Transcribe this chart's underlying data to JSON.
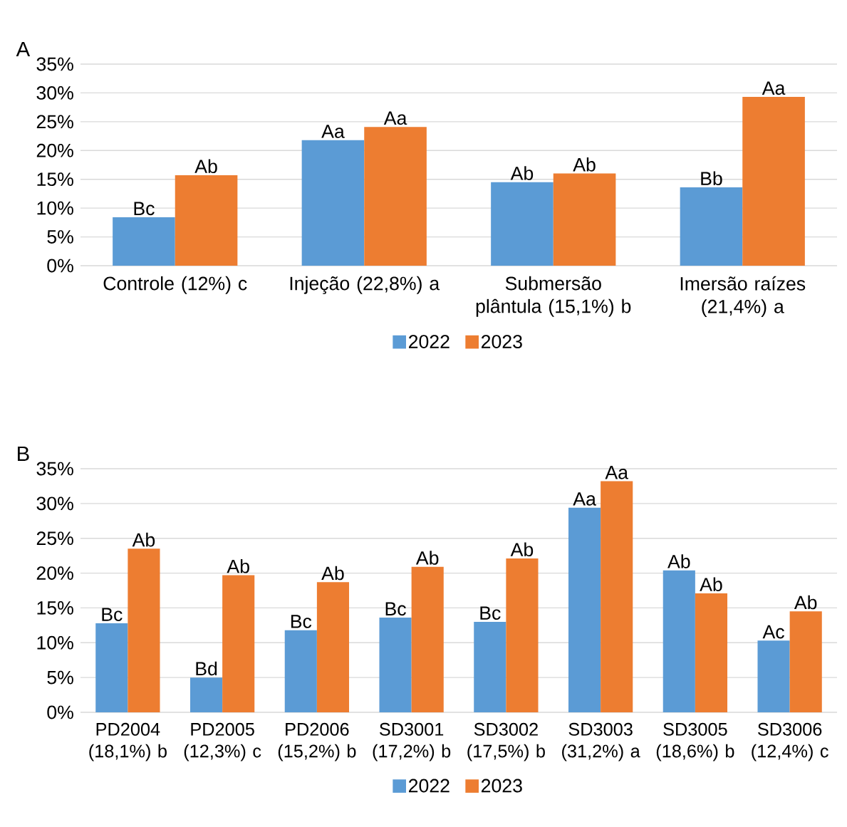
{
  "chart_data": [
    {
      "type": "bar",
      "title": "A",
      "categories": [
        "Controle (12%) c",
        "Injeção (22,8%) a",
        "Submersão plântula (15,1%) b",
        "Imersão raízes (21,4%) a"
      ],
      "series": [
        {
          "name": "2022",
          "color": "#5b9bd5",
          "values": [
            8.4,
            21.8,
            14.5,
            13.6
          ],
          "value_labels": [
            "Bc",
            "Aa",
            "Ab",
            "Bb"
          ]
        },
        {
          "name": "2023",
          "color": "#ed7d31",
          "values": [
            15.7,
            24.1,
            16.0,
            29.3
          ],
          "value_labels": [
            "Ab",
            "Aa",
            "Ab",
            "Aa"
          ]
        }
      ],
      "ylim": [
        0,
        35
      ],
      "yticks": [
        {
          "value": 0,
          "label": "0%"
        },
        {
          "value": 5,
          "label": "5%"
        },
        {
          "value": 10,
          "label": "10%"
        },
        {
          "value": 15,
          "label": "15%"
        },
        {
          "value": 20,
          "label": "20%"
        },
        {
          "value": 25,
          "label": "25%"
        },
        {
          "value": 30,
          "label": "30%"
        },
        {
          "value": 35,
          "label": "35%"
        }
      ],
      "grid": "y",
      "legend": "bottom"
    },
    {
      "type": "bar",
      "title": "B",
      "categories": [
        "PD2004 (18,1%) b",
        "PD2005 (12,3%) c",
        "PD2006 (15,2%) b",
        "SD3001 (17,2%) b",
        "SD3002 (17,5%) b",
        "SD3003 (31,2%) a",
        "SD3005 (18,6%) b",
        "SD3006 (12,4%) c"
      ],
      "series": [
        {
          "name": "2022",
          "color": "#5b9bd5",
          "values": [
            12.8,
            5.0,
            11.8,
            13.6,
            13.0,
            29.4,
            20.4,
            10.3
          ],
          "value_labels": [
            "Bc",
            "Bd",
            "Bc",
            "Bc",
            "Bc",
            "Aa",
            "Ab",
            "Ac"
          ]
        },
        {
          "name": "2023",
          "color": "#ed7d31",
          "values": [
            23.5,
            19.7,
            18.7,
            20.9,
            22.1,
            33.2,
            17.1,
            14.5
          ],
          "value_labels": [
            "Ab",
            "Ab",
            "Ab",
            "Ab",
            "Ab",
            "Aa",
            "Ab",
            "Ab"
          ]
        }
      ],
      "ylim": [
        0,
        35
      ],
      "yticks": [
        {
          "value": 0,
          "label": "0%"
        },
        {
          "value": 5,
          "label": "5%"
        },
        {
          "value": 10,
          "label": "10%"
        },
        {
          "value": 15,
          "label": "15%"
        },
        {
          "value": 20,
          "label": "20%"
        },
        {
          "value": 25,
          "label": "25%"
        },
        {
          "value": 30,
          "label": "30%"
        },
        {
          "value": 35,
          "label": "35%"
        }
      ],
      "grid": "y",
      "legend": "bottom"
    }
  ]
}
